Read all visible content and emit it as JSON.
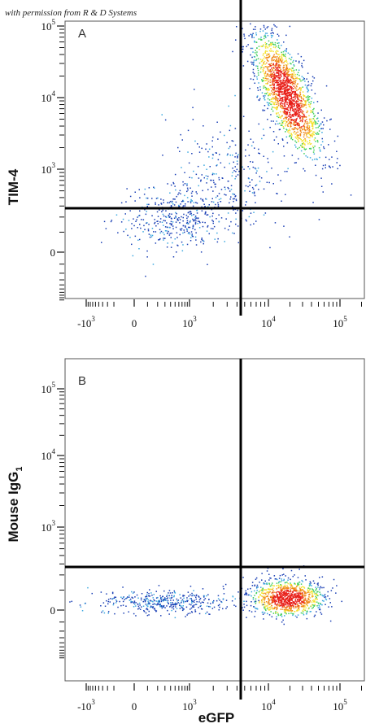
{
  "credit": "with permission from R & D Systems",
  "x_axis_title": "eGFP",
  "chart_data": [
    {
      "type": "scatter",
      "panel_label": "A",
      "ylabel": "TIM-4",
      "xlabel": "eGFP",
      "x_scale": "biexponential (log above ~10^3)",
      "y_scale": "biexponential (log above ~10^3)",
      "xlim": [
        -2000,
        250000
      ],
      "ylim": [
        -2000,
        200000
      ],
      "x_tick_labels": [
        "-10^3",
        "0",
        "10^3",
        "10^4",
        "10^5"
      ],
      "y_tick_labels": [
        "0",
        "10^3",
        "10^4",
        "10^5"
      ],
      "quadrant_gate": {
        "x": 5000,
        "y": 350
      },
      "density_colors": [
        "#1a3fb5",
        "#3ba8e0",
        "#3fcf5a",
        "#f5e12a",
        "#f08a1a",
        "#e8201a"
      ],
      "populations": [
        {
          "name": "",
          "center": {
            "x": 18000,
            "y": 11000
          },
          "spread": "elongated diagonal",
          "density": "high"
        },
        {
          "name": "",
          "center": {
            "x": 600,
            "y": 200
          },
          "spread": "broad",
          "density": "low"
        },
        {
          "name": "",
          "center": {
            "x": 3000,
            "y": 1000
          },
          "spread": "diffuse",
          "density": "low"
        }
      ]
    },
    {
      "type": "scatter",
      "panel_label": "B",
      "ylabel": "Mouse IgG",
      "ylabel_subscript": "1",
      "xlabel": "eGFP",
      "x_scale": "biexponential (log above ~10^3)",
      "y_scale": "biexponential (log above ~10^3)",
      "xlim": [
        -2000,
        250000
      ],
      "ylim": [
        -2000,
        200000
      ],
      "x_tick_labels": [
        "-10^3",
        "0",
        "10^3",
        "10^4",
        "10^5"
      ],
      "y_tick_labels": [
        "0",
        "10^3",
        "10^4",
        "10^5"
      ],
      "quadrant_gate": {
        "x": 5000,
        "y": 350
      },
      "density_colors": [
        "#1a3fb5",
        "#3ba8e0",
        "#3fcf5a",
        "#f5e12a",
        "#f08a1a",
        "#e8201a"
      ],
      "populations": [
        {
          "name": "",
          "center": {
            "x": 18000,
            "y": 60
          },
          "spread": "compact",
          "density": "high"
        },
        {
          "name": "",
          "center": {
            "x": 300,
            "y": 40
          },
          "spread": "horizontal band",
          "density": "low"
        }
      ]
    }
  ]
}
